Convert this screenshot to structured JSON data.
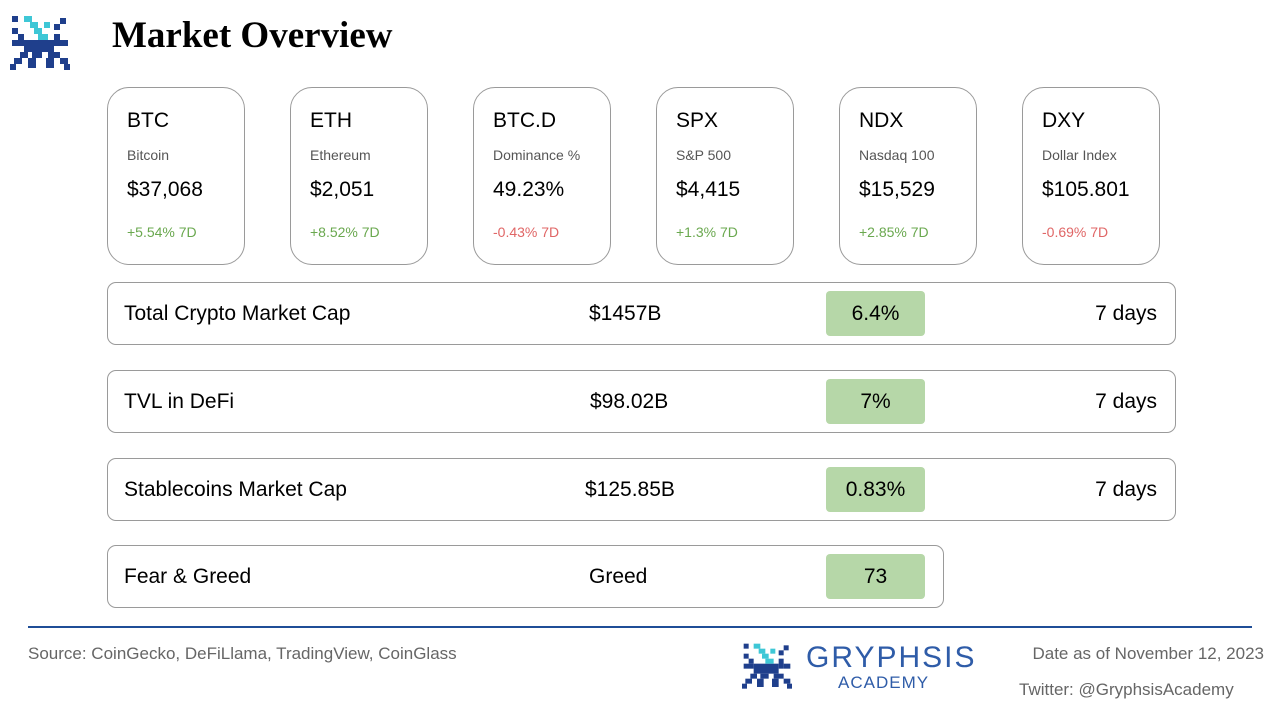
{
  "header": {
    "title": "Market Overview"
  },
  "cards": [
    {
      "ticker": "BTC",
      "name": "Bitcoin",
      "price": "$37,068",
      "change": "+5.54% 7D",
      "direction": "up"
    },
    {
      "ticker": "ETH",
      "name": "Ethereum",
      "price": "$2,051",
      "change": "+8.52% 7D",
      "direction": "up"
    },
    {
      "ticker": "BTC.D",
      "name": "Dominance %",
      "price": "49.23%",
      "change": "-0.43% 7D",
      "direction": "down"
    },
    {
      "ticker": "SPX",
      "name": "S&P 500",
      "price": "$4,415",
      "change": "+1.3% 7D",
      "direction": "up"
    },
    {
      "ticker": "NDX",
      "name": "Nasdaq 100",
      "price": "$15,529",
      "change": "+2.85% 7D",
      "direction": "up"
    },
    {
      "ticker": "DXY",
      "name": "Dollar Index",
      "price": "$105.801",
      "change": "-0.69% 7D",
      "direction": "down"
    }
  ],
  "metrics": [
    {
      "label": "Total Crypto Market Cap",
      "value": "$1457B",
      "change": "6.4%",
      "period": "7 days"
    },
    {
      "label": "TVL in DeFi",
      "value": "$98.02B",
      "change": "7%",
      "period": "7 days"
    },
    {
      "label": "Stablecoins Market Cap",
      "value": "$125.85B",
      "change": "0.83%",
      "period": "7 days"
    },
    {
      "label": "Fear & Greed",
      "value": "Greed",
      "change": "73"
    }
  ],
  "footer": {
    "source": "Source: CoinGecko, DeFiLlama, TradingView, CoinGlass",
    "brand_name": "GRYPHSIS",
    "brand_sub": "ACADEMY",
    "date": "Date as of November 12, 2023",
    "twitter": "Twitter: @GryphsisAcademy"
  },
  "colors": {
    "positive": "#6aa84f",
    "negative": "#e06666",
    "pill": "#b6d7a8",
    "brand": "#2f5ca8",
    "brand_dark": "#1f3f8c",
    "accent": "#3ec7d6",
    "rule": "#1f4e97"
  },
  "icons": {
    "logo": "gryphon-pixel-logo-icon"
  }
}
